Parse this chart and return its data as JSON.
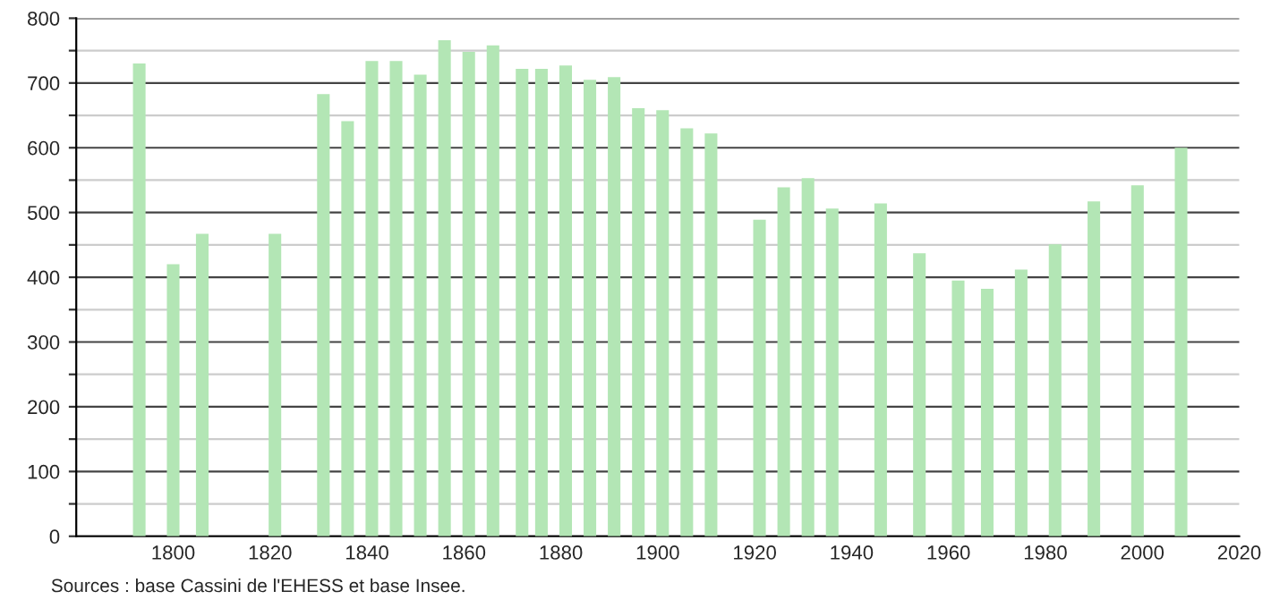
{
  "chart_data": {
    "type": "bar",
    "x": [
      1793,
      1800,
      1806,
      1821,
      1831,
      1836,
      1841,
      1846,
      1851,
      1856,
      1861,
      1866,
      1872,
      1876,
      1881,
      1886,
      1891,
      1896,
      1901,
      1906,
      1911,
      1921,
      1926,
      1931,
      1936,
      1946,
      1954,
      1962,
      1968,
      1975,
      1982,
      1990,
      1999,
      2008
    ],
    "values": [
      730,
      420,
      467,
      467,
      683,
      641,
      734,
      734,
      713,
      766,
      748,
      758,
      722,
      722,
      727,
      705,
      709,
      661,
      658,
      630,
      622,
      489,
      539,
      553,
      506,
      514,
      437,
      395,
      382,
      412,
      451,
      517,
      542,
      600
    ],
    "color": "#b3e6b5",
    "xlim": [
      1780,
      2020
    ],
    "xticks": [
      1800,
      1820,
      1840,
      1860,
      1880,
      1900,
      1920,
      1940,
      1960,
      1980,
      2000,
      2020
    ],
    "ylim": [
      0,
      800
    ],
    "yticks": [
      0,
      {
        "value": 50,
        "label": null
      },
      100,
      {
        "value": 150,
        "label": null
      },
      200,
      {
        "value": 250,
        "label": null
      },
      300,
      {
        "value": 350,
        "label": null
      },
      400,
      {
        "value": 450,
        "label": null
      },
      500,
      {
        "value": 550,
        "label": null
      },
      600,
      {
        "value": 650,
        "label": null
      },
      700,
      {
        "value": 750,
        "label": null
      },
      800
    ],
    "grid": "y",
    "annotations": [
      "Sources : base Cassini de l'EHESS et base Insee."
    ]
  }
}
